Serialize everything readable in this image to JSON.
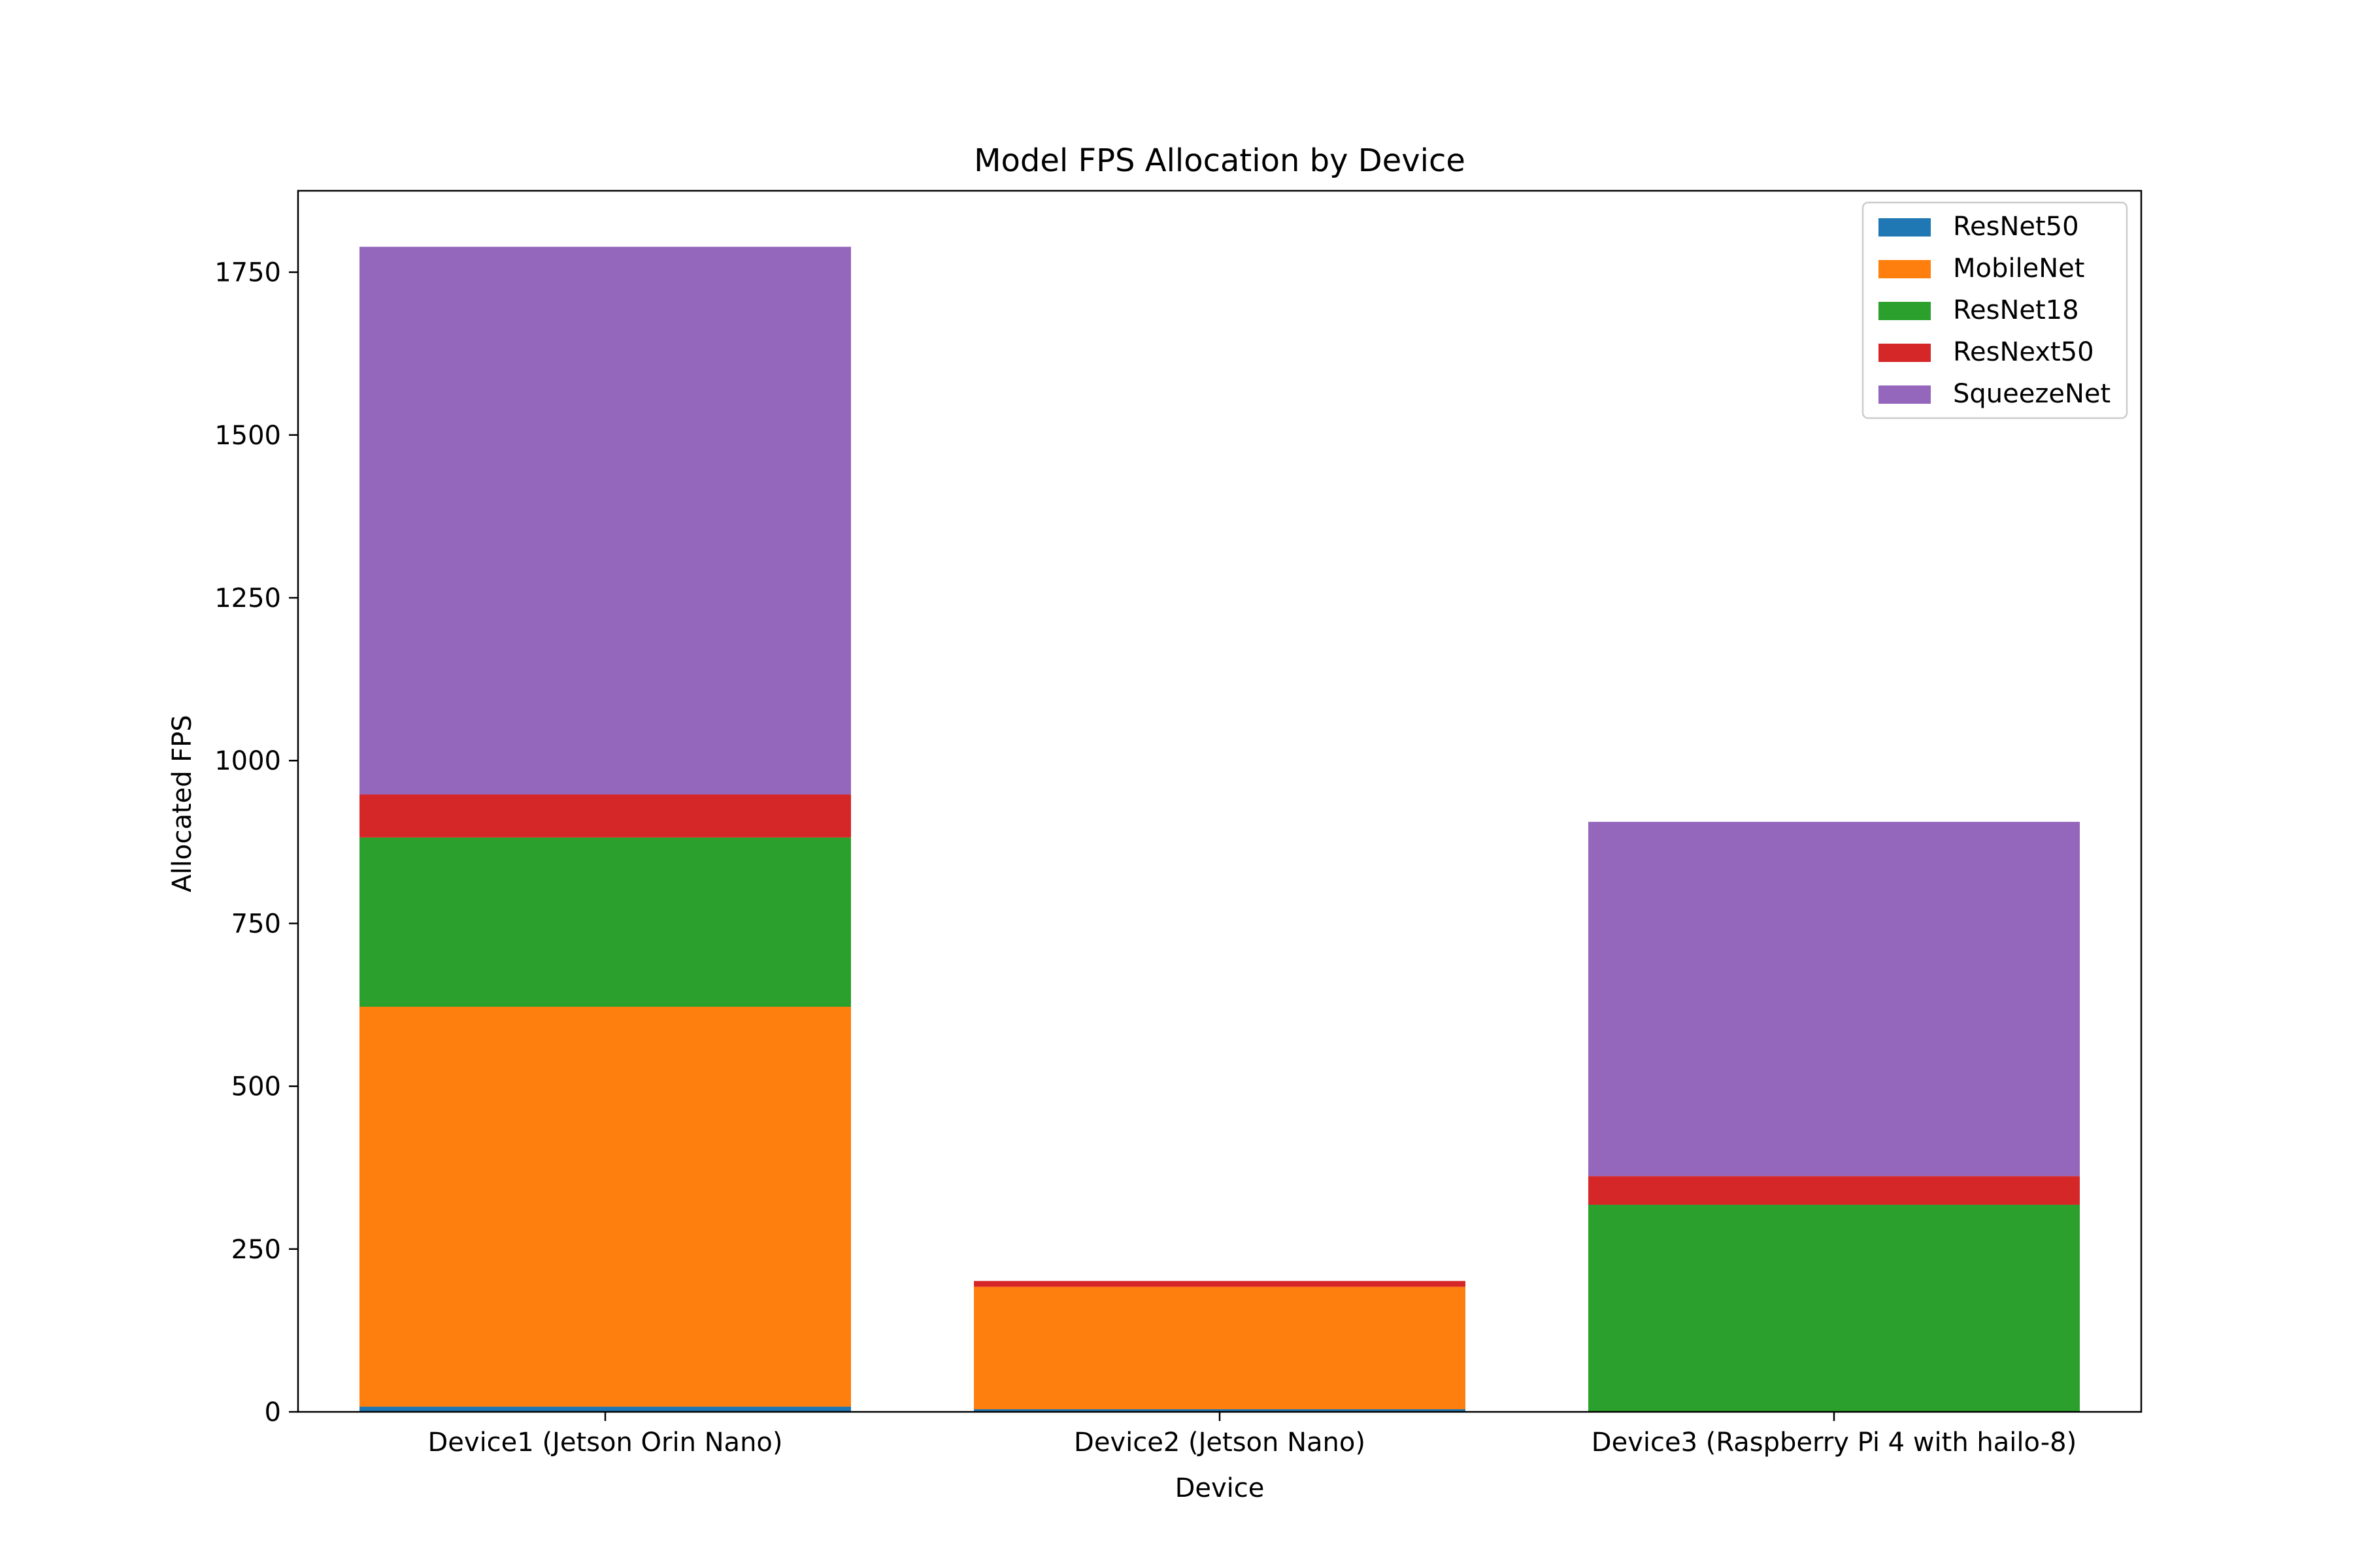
{
  "chart_data": {
    "type": "bar",
    "stacked": true,
    "title": "Model FPS Allocation by Device",
    "xlabel": "Device",
    "ylabel": "Allocated FPS",
    "categories": [
      "Device1 (Jetson Orin Nano)",
      "Device2 (Jetson Nano)",
      "Device3 (Raspberry Pi 4 with hailo-8)"
    ],
    "ylim": [
      0,
      1875
    ],
    "yticks": [
      0,
      250,
      500,
      750,
      1000,
      1250,
      1500,
      1750
    ],
    "legend_position": "top-right",
    "grid": false,
    "series": [
      {
        "name": "ResNet50",
        "color": "#1f77b4",
        "values": [
          8,
          4,
          0
        ]
      },
      {
        "name": "MobileNet",
        "color": "#ff7f0e",
        "values": [
          614,
          188,
          0
        ]
      },
      {
        "name": "ResNet18",
        "color": "#2ca02c",
        "values": [
          260,
          0,
          318
        ]
      },
      {
        "name": "ResNext50",
        "color": "#d62728",
        "values": [
          66,
          9,
          44
        ]
      },
      {
        "name": "SqueezeNet",
        "color": "#9467bd",
        "values": [
          841,
          0,
          544
        ]
      }
    ]
  }
}
